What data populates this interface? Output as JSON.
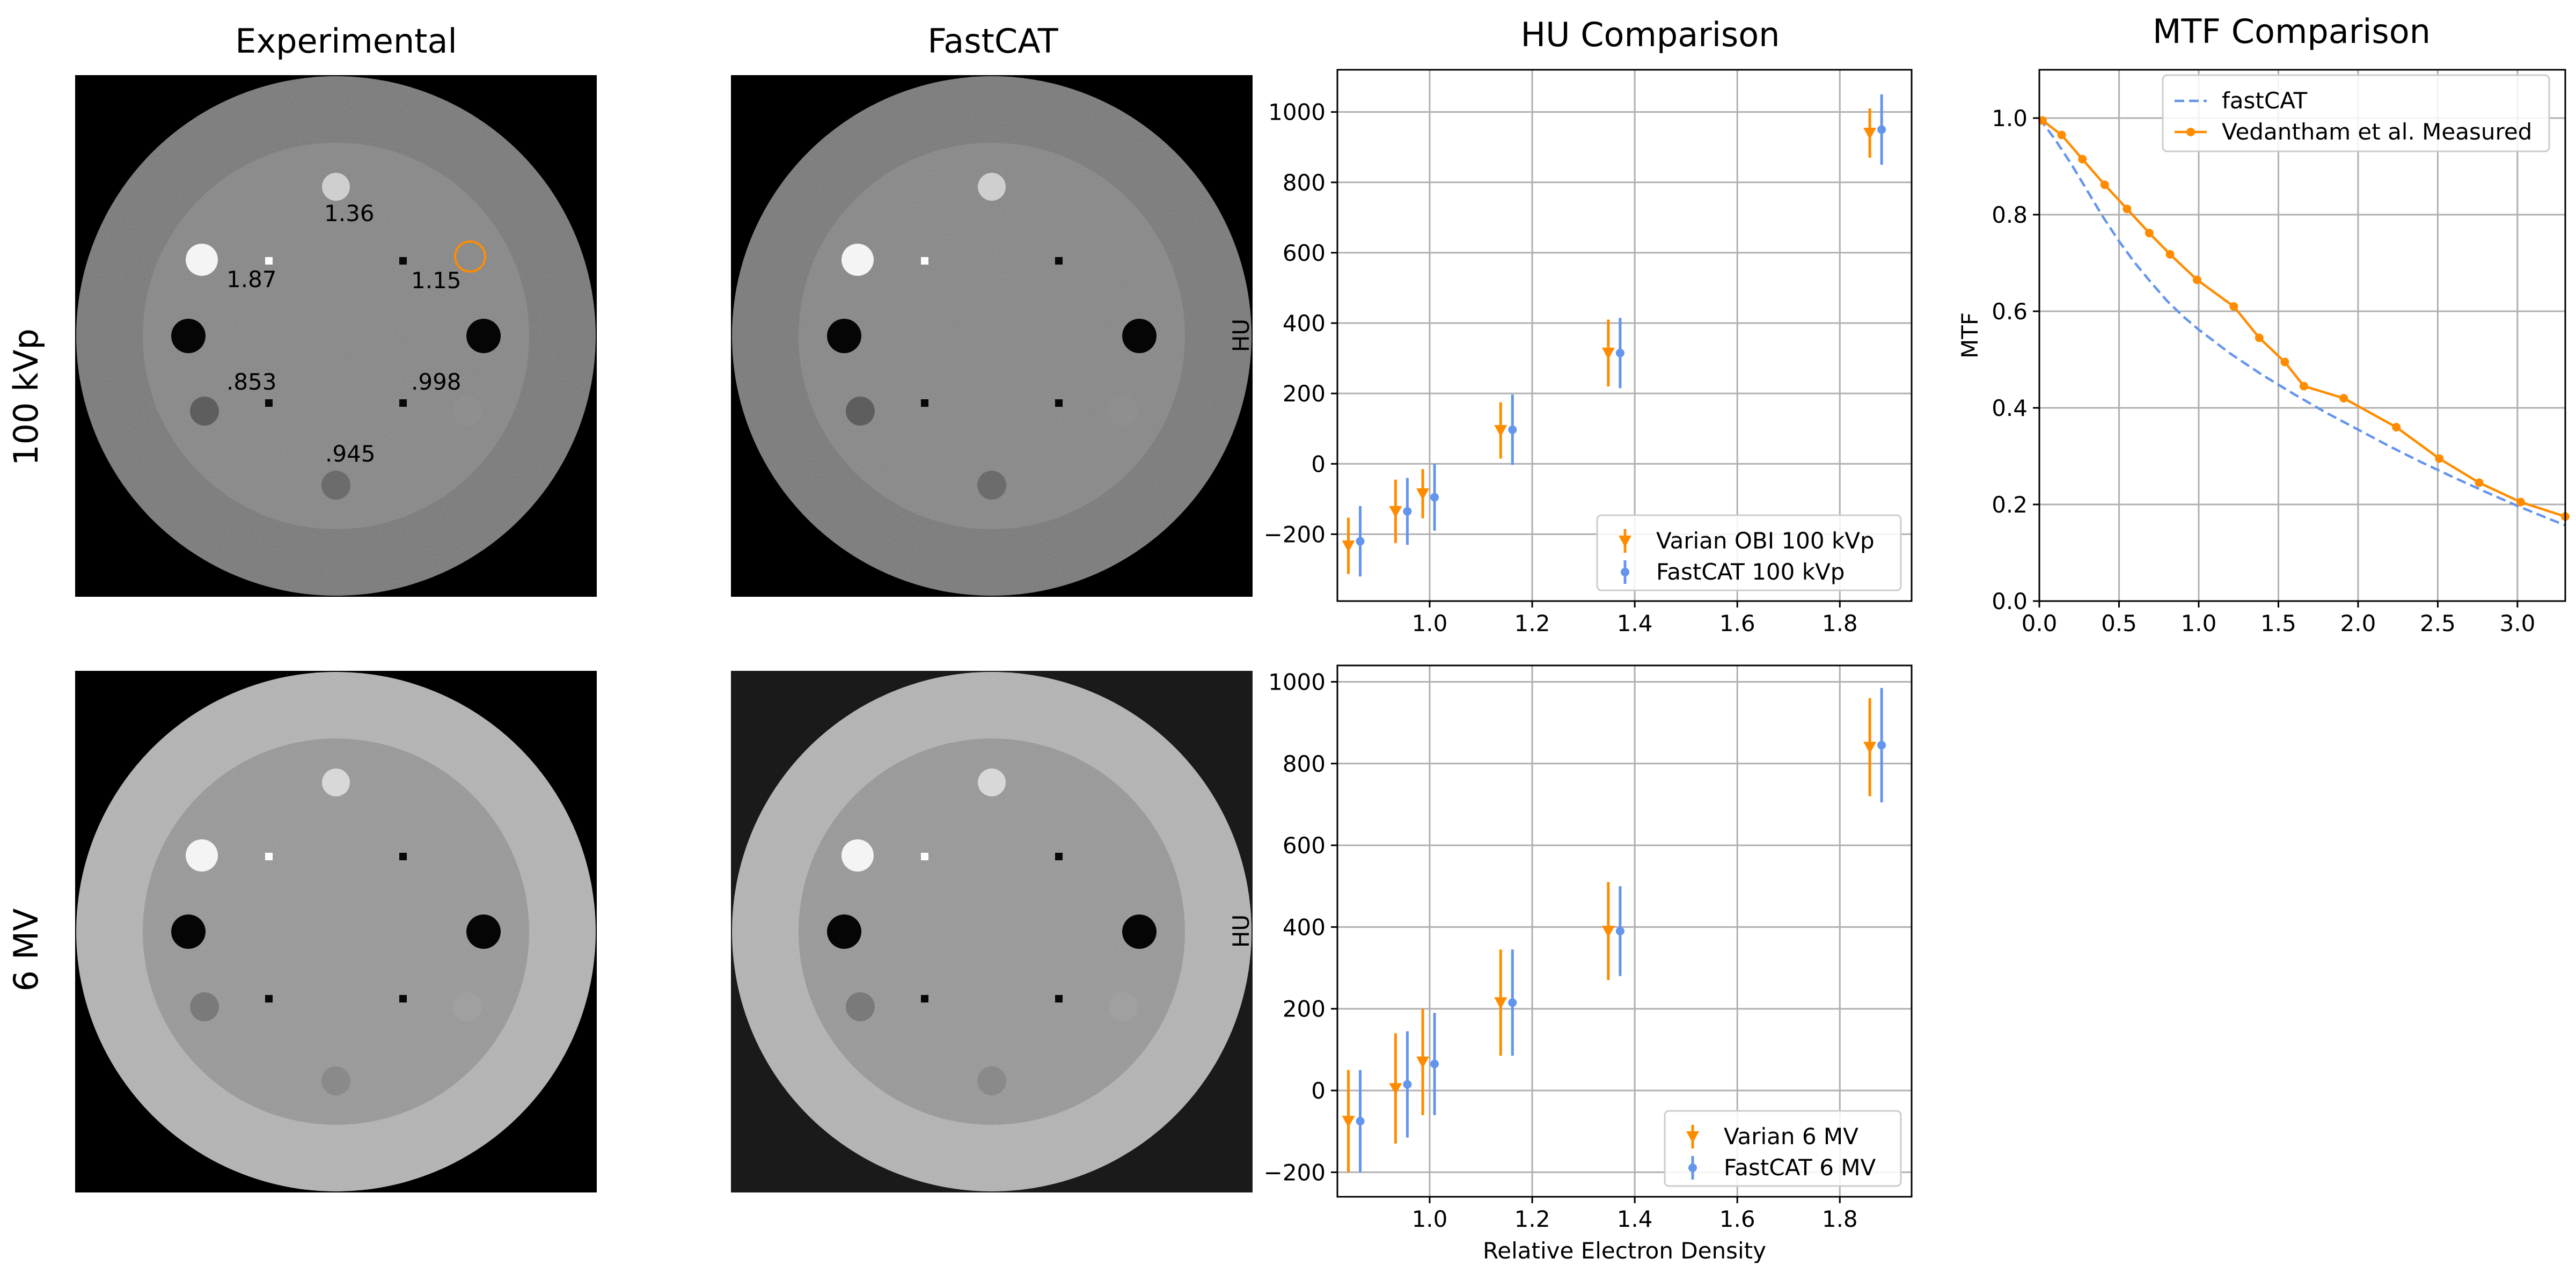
{
  "figure": {
    "column_titles": [
      "Experimental",
      "FastCAT",
      "HU Comparison",
      "MTF Comparison"
    ],
    "row_labels": [
      "100 kVp",
      "6 MV"
    ]
  },
  "phantom": {
    "annotations": [
      "1.36",
      "1.87",
      "1.15",
      ".853",
      ".998",
      ".945"
    ]
  },
  "chart_data": [
    {
      "type": "scatter",
      "title": "HU Comparison",
      "xlabel": "",
      "ylabel": "HU",
      "xlim": [
        0.82,
        1.94
      ],
      "ylim": [
        -390,
        1120
      ],
      "xticks": [
        1.0,
        1.2,
        1.4,
        1.6,
        1.8
      ],
      "xtick_labels": [
        "1.0",
        "1.2",
        "1.4",
        "1.6",
        "1.8"
      ],
      "yticks": [
        -200,
        0,
        200,
        400,
        600,
        800,
        1000
      ],
      "ytick_labels": [
        "−200",
        "0",
        "200",
        "400",
        "600",
        "800",
        "1000"
      ],
      "grid": true,
      "legend": "lower-right",
      "series": [
        {
          "name": "Varian OBI 100 kVp",
          "color": "#ff8c00",
          "marker": "triangle-down",
          "x": [
            0.853,
            0.945,
            0.998,
            1.15,
            1.36,
            1.87
          ],
          "y": [
            -233,
            -135,
            -85,
            95,
            315,
            940
          ],
          "err": [
            80,
            90,
            70,
            80,
            95,
            70
          ]
        },
        {
          "name": "FastCAT 100 kVp",
          "color": "#6495ed",
          "marker": "circle",
          "x": [
            0.853,
            0.945,
            0.998,
            1.15,
            1.36,
            1.87
          ],
          "y": [
            -220,
            -135,
            -95,
            97,
            315,
            950
          ],
          "err": [
            100,
            95,
            95,
            100,
            100,
            100
          ]
        }
      ]
    },
    {
      "type": "scatter",
      "title": "",
      "xlabel": "Relative Electron Density",
      "ylabel": "HU",
      "xlim": [
        0.82,
        1.94
      ],
      "ylim": [
        -260,
        1040
      ],
      "xticks": [
        1.0,
        1.2,
        1.4,
        1.6,
        1.8
      ],
      "xtick_labels": [
        "1.0",
        "1.2",
        "1.4",
        "1.6",
        "1.8"
      ],
      "yticks": [
        -200,
        0,
        200,
        400,
        600,
        800,
        1000
      ],
      "ytick_labels": [
        "−200",
        "0",
        "200",
        "400",
        "600",
        "800",
        "1000"
      ],
      "grid": true,
      "legend": "lower-right",
      "series": [
        {
          "name": "Varian 6 MV",
          "color": "#ff8c00",
          "marker": "triangle-down",
          "x": [
            0.853,
            0.945,
            0.998,
            1.15,
            1.36,
            1.87
          ],
          "y": [
            -75,
            5,
            70,
            215,
            390,
            840
          ],
          "err": [
            125,
            135,
            130,
            130,
            120,
            120
          ]
        },
        {
          "name": "FastCAT 6 MV",
          "color": "#6495ed",
          "marker": "circle",
          "x": [
            0.853,
            0.945,
            0.998,
            1.15,
            1.36,
            1.87
          ],
          "y": [
            -75,
            15,
            65,
            215,
            390,
            845
          ],
          "err": [
            125,
            130,
            125,
            130,
            110,
            140
          ]
        }
      ]
    },
    {
      "type": "line",
      "title": "MTF Comparison",
      "xlabel": "",
      "ylabel": "MTF",
      "xlim": [
        0.0,
        3.3
      ],
      "ylim": [
        0.0,
        1.1
      ],
      "xticks": [
        0.0,
        0.5,
        1.0,
        1.5,
        2.0,
        2.5,
        3.0
      ],
      "xtick_labels": [
        "0.0",
        "0.5",
        "1.0",
        "1.5",
        "2.0",
        "2.5",
        "3.0"
      ],
      "yticks": [
        0.0,
        0.2,
        0.4,
        0.6,
        0.8,
        1.0
      ],
      "ytick_labels": [
        "0.0",
        "0.2",
        "0.4",
        "0.6",
        "0.8",
        "1.0"
      ],
      "grid": true,
      "legend": "top-right",
      "series": [
        {
          "name": "fastCAT",
          "color": "#6495ed",
          "style": "dashed",
          "x": [
            0.0,
            0.1,
            0.2,
            0.3,
            0.4,
            0.5,
            0.6,
            0.7,
            0.8,
            0.9,
            1.0,
            1.2,
            1.4,
            1.6,
            1.8,
            2.0,
            2.2,
            2.4,
            2.6,
            2.8,
            3.0,
            3.2,
            3.3
          ],
          "y": [
            1.0,
            0.955,
            0.905,
            0.85,
            0.795,
            0.745,
            0.7,
            0.66,
            0.622,
            0.59,
            0.562,
            0.512,
            0.468,
            0.428,
            0.39,
            0.355,
            0.32,
            0.287,
            0.256,
            0.226,
            0.197,
            0.17,
            0.157
          ]
        },
        {
          "name": "Vedantham et al. Measured",
          "color": "#ff8c00",
          "style": "solid-dot",
          "x": [
            0.02,
            0.14,
            0.27,
            0.41,
            0.55,
            0.69,
            0.82,
            0.99,
            1.22,
            1.38,
            1.54,
            1.66,
            1.91,
            2.24,
            2.51,
            2.76,
            3.02,
            3.3
          ],
          "y": [
            0.995,
            0.965,
            0.915,
            0.862,
            0.812,
            0.762,
            0.718,
            0.665,
            0.61,
            0.545,
            0.495,
            0.445,
            0.42,
            0.36,
            0.295,
            0.245,
            0.205,
            0.175
          ]
        }
      ]
    }
  ]
}
